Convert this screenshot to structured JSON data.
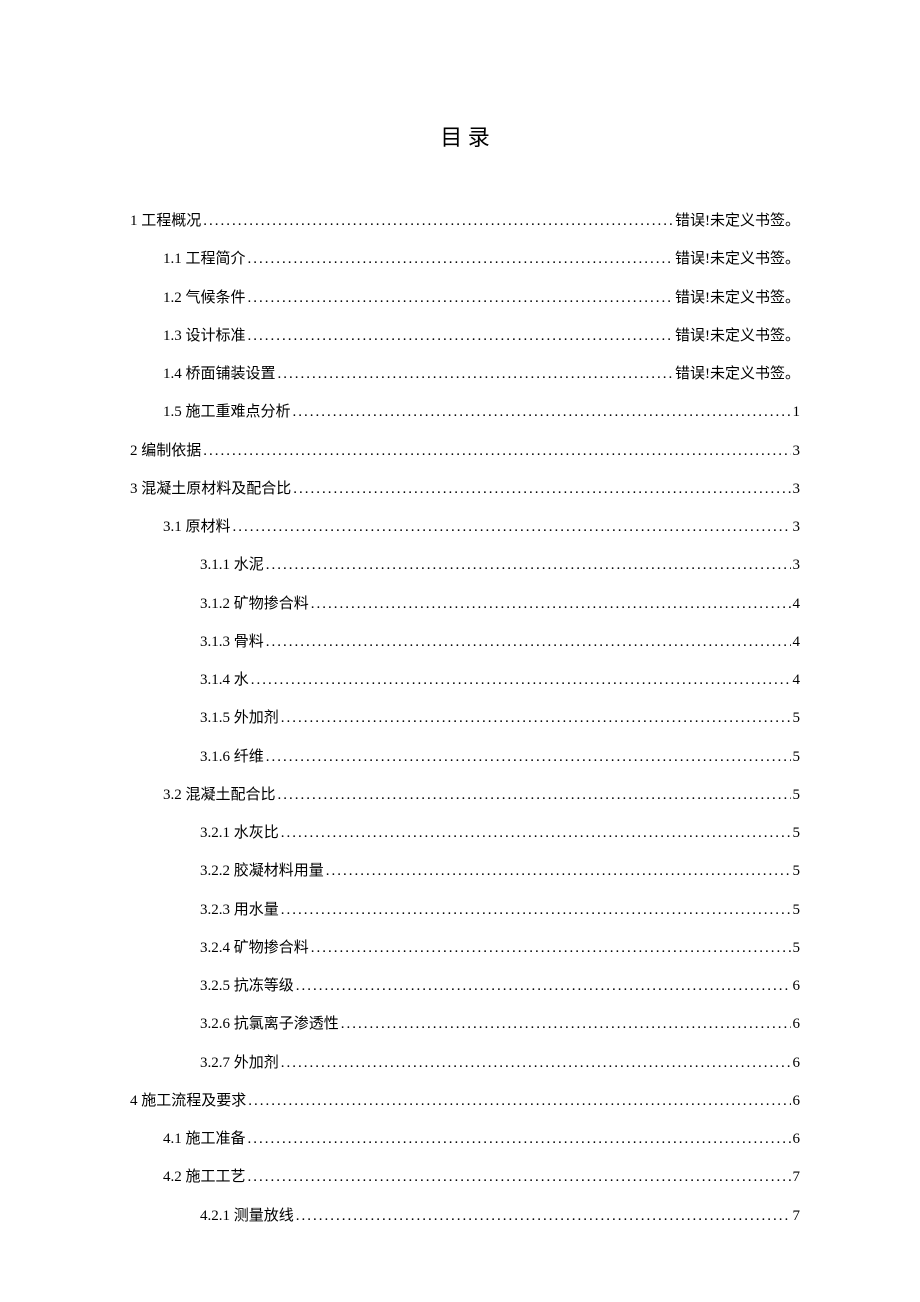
{
  "title": "目  录",
  "entries": [
    {
      "level": 1,
      "label": "1 工程概况",
      "page": "错误!未定义书签。"
    },
    {
      "level": 2,
      "label": "1.1 工程简介",
      "page": "错误!未定义书签。"
    },
    {
      "level": 2,
      "label": "1.2 气候条件",
      "page": "错误!未定义书签。"
    },
    {
      "level": 2,
      "label": "1.3 设计标准",
      "page": "错误!未定义书签。"
    },
    {
      "level": 2,
      "label": "1.4 桥面铺装设置",
      "page": "错误!未定义书签。"
    },
    {
      "level": 2,
      "label": "1.5 施工重难点分析",
      "page": "1"
    },
    {
      "level": 1,
      "label": "2 编制依据",
      "page": "3"
    },
    {
      "level": 1,
      "label": "3 混凝土原材料及配合比",
      "page": "3"
    },
    {
      "level": 2,
      "label": "3.1  原材料",
      "page": "3"
    },
    {
      "level": 3,
      "label": "3.1.1  水泥",
      "page": "3"
    },
    {
      "level": 3,
      "label": "3.1.2  矿物掺合料",
      "page": "4"
    },
    {
      "level": 3,
      "label": "3.1.3  骨料",
      "page": "4"
    },
    {
      "level": 3,
      "label": "3.1.4  水",
      "page": "4"
    },
    {
      "level": 3,
      "label": "3.1.5  外加剂",
      "page": "5"
    },
    {
      "level": 3,
      "label": "3.1.6  纤维",
      "page": "5"
    },
    {
      "level": 2,
      "label": "3.2  混凝土配合比",
      "page": "5"
    },
    {
      "level": 3,
      "label": "3.2.1  水灰比",
      "page": "5"
    },
    {
      "level": 3,
      "label": "3.2.2  胶凝材料用量",
      "page": "5"
    },
    {
      "level": 3,
      "label": "3.2.3  用水量",
      "page": "5"
    },
    {
      "level": 3,
      "label": "3.2.4  矿物掺合料",
      "page": "5"
    },
    {
      "level": 3,
      "label": "3.2.5  抗冻等级",
      "page": "6"
    },
    {
      "level": 3,
      "label": "3.2.6  抗氯离子渗透性",
      "page": "6"
    },
    {
      "level": 3,
      "label": "3.2.7  外加剂",
      "page": "6"
    },
    {
      "level": 1,
      "label": "4 施工流程及要求",
      "page": "6"
    },
    {
      "level": 2,
      "label": "4.1 施工准备",
      "page": "6"
    },
    {
      "level": 2,
      "label": "4.2 施工工艺",
      "page": "7"
    },
    {
      "level": 3,
      "label": "4.2.1 测量放线",
      "page": "7"
    }
  ]
}
